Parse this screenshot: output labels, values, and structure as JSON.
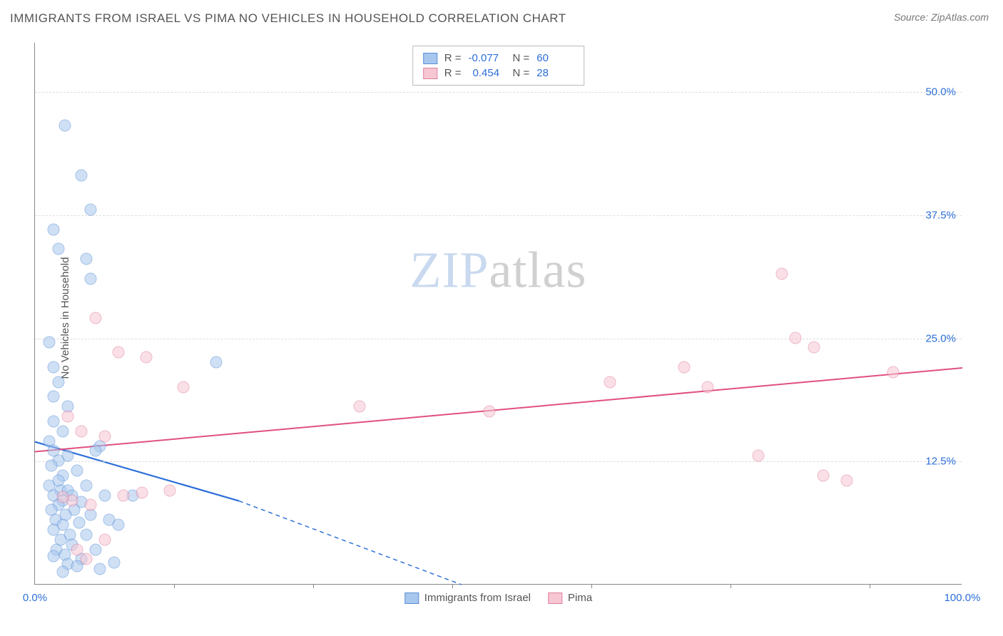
{
  "title": "IMMIGRANTS FROM ISRAEL VS PIMA NO VEHICLES IN HOUSEHOLD CORRELATION CHART",
  "source": "Source: ZipAtlas.com",
  "ylabel": "No Vehicles in Household",
  "watermark": {
    "a": "ZIP",
    "b": "atlas"
  },
  "chart": {
    "type": "scatter",
    "xlim": [
      0,
      100
    ],
    "ylim": [
      0,
      55
    ],
    "ytick_labels": [
      "12.5%",
      "25.0%",
      "37.5%",
      "50.0%"
    ],
    "ytick_vals": [
      12.5,
      25.0,
      37.5,
      50.0
    ],
    "xtick_labels": [
      "0.0%",
      "100.0%"
    ],
    "xtick_vals": [
      0,
      100
    ],
    "xminor_ticks": [
      15,
      30,
      45,
      60,
      75,
      90
    ],
    "grid_color": "#dddddd",
    "background_color": "#ffffff",
    "series": [
      {
        "name": "Immigrants from Israel",
        "fill": "#a8c7ee",
        "stroke": "#5a8fd6",
        "fill_opacity": 0.55,
        "trend": {
          "x1": 0,
          "y1": 14.5,
          "x2_solid": 22,
          "y2_solid": 8.5,
          "x2_dash": 46,
          "y2_dash": 0,
          "color": "#2c6fd8",
          "width": 2.2
        },
        "stats": {
          "R": "-0.077",
          "N": "60"
        },
        "points": [
          [
            3.2,
            46.5
          ],
          [
            5.0,
            41.5
          ],
          [
            6.0,
            38.0
          ],
          [
            2.0,
            36.0
          ],
          [
            2.5,
            34.0
          ],
          [
            5.5,
            33.0
          ],
          [
            6.0,
            31.0
          ],
          [
            1.5,
            24.5
          ],
          [
            2.0,
            22.0
          ],
          [
            19.5,
            22.5
          ],
          [
            2.5,
            20.5
          ],
          [
            2.0,
            19.0
          ],
          [
            3.5,
            18.0
          ],
          [
            2.0,
            16.5
          ],
          [
            3.0,
            15.5
          ],
          [
            1.5,
            14.5
          ],
          [
            7.0,
            14.0
          ],
          [
            2.0,
            13.5
          ],
          [
            3.5,
            13.0
          ],
          [
            6.5,
            13.5
          ],
          [
            2.5,
            12.5
          ],
          [
            1.8,
            12.0
          ],
          [
            4.5,
            11.5
          ],
          [
            3.0,
            11.0
          ],
          [
            2.5,
            10.5
          ],
          [
            1.5,
            10.0
          ],
          [
            5.5,
            10.0
          ],
          [
            2.8,
            9.5
          ],
          [
            3.5,
            9.5
          ],
          [
            4.0,
            9.0
          ],
          [
            7.5,
            9.0
          ],
          [
            10.5,
            9.0
          ],
          [
            2.0,
            9.0
          ],
          [
            3.0,
            8.5
          ],
          [
            5.0,
            8.3
          ],
          [
            2.5,
            8.0
          ],
          [
            4.2,
            7.5
          ],
          [
            1.8,
            7.5
          ],
          [
            6.0,
            7.0
          ],
          [
            3.3,
            7.0
          ],
          [
            2.2,
            6.5
          ],
          [
            4.8,
            6.2
          ],
          [
            8.0,
            6.5
          ],
          [
            3.0,
            6.0
          ],
          [
            2.0,
            5.5
          ],
          [
            5.5,
            5.0
          ],
          [
            3.8,
            5.0
          ],
          [
            2.8,
            4.5
          ],
          [
            9.0,
            6.0
          ],
          [
            4.0,
            4.0
          ],
          [
            2.3,
            3.5
          ],
          [
            6.5,
            3.5
          ],
          [
            3.2,
            3.0
          ],
          [
            2.0,
            2.8
          ],
          [
            5.0,
            2.5
          ],
          [
            3.5,
            2.0
          ],
          [
            8.5,
            2.2
          ],
          [
            4.5,
            1.8
          ],
          [
            7.0,
            1.5
          ],
          [
            3.0,
            1.2
          ]
        ]
      },
      {
        "name": "Pima",
        "fill": "#f6c7d3",
        "stroke": "#e17fa0",
        "fill_opacity": 0.55,
        "trend": {
          "x1": 0,
          "y1": 13.5,
          "x2_solid": 100,
          "y2_solid": 22.0,
          "color": "#e05080",
          "width": 2.0
        },
        "stats": {
          "R": "0.454",
          "N": "28"
        },
        "points": [
          [
            6.5,
            27.0
          ],
          [
            9.0,
            23.5
          ],
          [
            12.0,
            23.0
          ],
          [
            16.0,
            20.0
          ],
          [
            35.0,
            18.0
          ],
          [
            49.0,
            17.5
          ],
          [
            62.0,
            20.5
          ],
          [
            70.0,
            22.0
          ],
          [
            72.5,
            20.0
          ],
          [
            80.5,
            31.5
          ],
          [
            82.0,
            25.0
          ],
          [
            84.0,
            24.0
          ],
          [
            85.0,
            11.0
          ],
          [
            87.5,
            10.5
          ],
          [
            78.0,
            13.0
          ],
          [
            92.5,
            21.5
          ],
          [
            5.0,
            15.5
          ],
          [
            7.5,
            15.0
          ],
          [
            3.5,
            17.0
          ],
          [
            9.5,
            9.0
          ],
          [
            11.5,
            9.3
          ],
          [
            14.5,
            9.5
          ],
          [
            4.0,
            8.5
          ],
          [
            6.0,
            8.0
          ],
          [
            3.0,
            8.8
          ],
          [
            7.5,
            4.5
          ],
          [
            4.5,
            3.5
          ],
          [
            5.5,
            2.5
          ]
        ]
      }
    ]
  },
  "legend": {
    "s1_label": "Immigrants from Israel",
    "s2_label": "Pima"
  }
}
